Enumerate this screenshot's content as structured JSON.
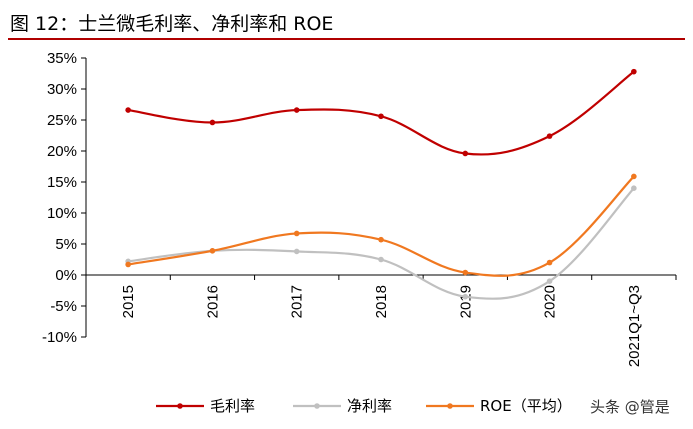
{
  "page": {
    "title": "图 12：士兰微毛利率、净利率和 ROE",
    "watermark": "头条 @管是"
  },
  "chart_data": {
    "type": "line",
    "categories": [
      "2015",
      "2016",
      "2017",
      "2018",
      "2019",
      "2020",
      "2021Q1~Q3"
    ],
    "yticks": [
      "35%",
      "30%",
      "25%",
      "20%",
      "15%",
      "10%",
      "5%",
      "0%",
      "-5%",
      "-10%"
    ],
    "ylim": [
      -10,
      35
    ],
    "series": [
      {
        "name": "毛利率",
        "color": "#c00000",
        "values": [
          26.6,
          24.6,
          26.6,
          25.6,
          19.6,
          22.4,
          32.8
        ]
      },
      {
        "name": "净利率",
        "color": "#c0c0c0",
        "values": [
          2.2,
          3.9,
          3.8,
          2.5,
          -3.5,
          -1.0,
          14.0
        ]
      },
      {
        "name": "ROE（平均）",
        "color": "#f07820",
        "values": [
          1.7,
          3.9,
          6.7,
          5.7,
          0.4,
          2.0,
          15.9
        ]
      }
    ],
    "legend_position": "bottom"
  }
}
